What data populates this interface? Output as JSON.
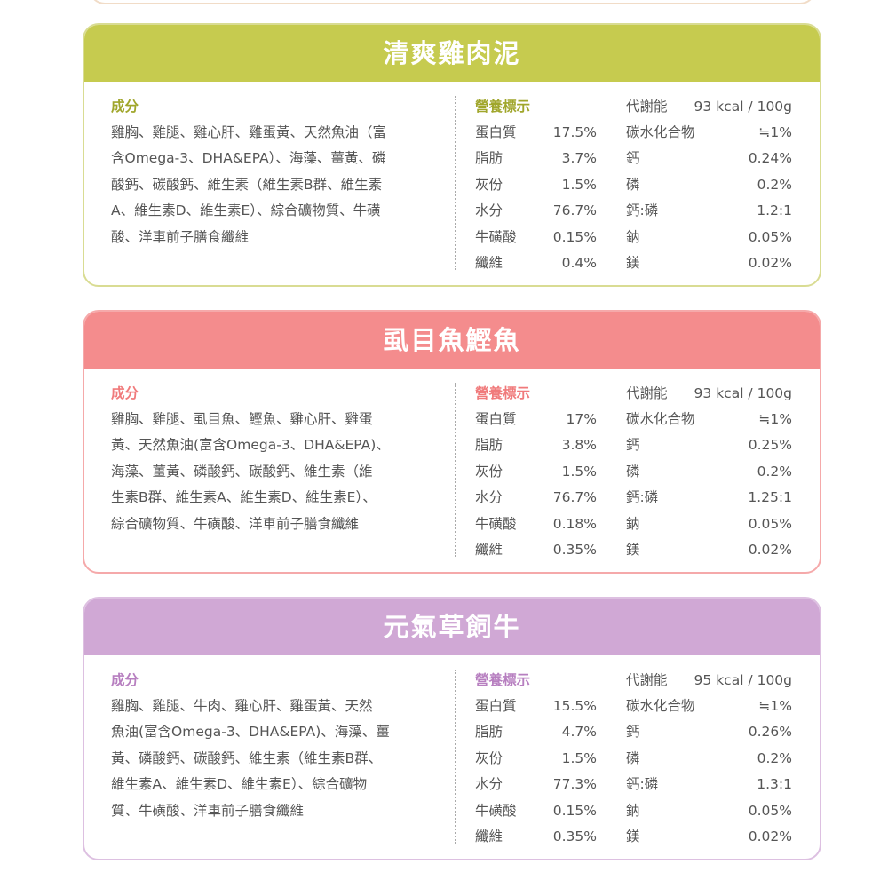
{
  "cards": [
    {
      "title": "清爽雞肉泥",
      "theme": "green",
      "ingredients_label": "成分",
      "ingredients_lines": [
        "雞胸、雞腿、雞心肝、雞蛋黃、天然魚油（富",
        "含Omega-3、DHA&EPA）、海藻、薑黃、磷",
        "酸鈣、碳酸鈣、維生素（維生素B群、維生素",
        "A、維生素D、維生素E）、綜合礦物質、牛磺",
        "酸、洋車前子膳食纖維"
      ],
      "nutrition_label": "營養標示",
      "energy_label": "代謝能",
      "energy_value": "93 kcal / 100g",
      "rows": [
        [
          "蛋白質",
          "17.5%",
          "碳水化合物",
          "≒1%"
        ],
        [
          "脂肪",
          "3.7%",
          "鈣",
          "0.24%"
        ],
        [
          "灰份",
          "1.5%",
          "磷",
          "0.2%"
        ],
        [
          "水分",
          "76.7%",
          "鈣:磷",
          "1.2:1"
        ],
        [
          "牛磺酸",
          "0.15%",
          "鈉",
          "0.05%"
        ],
        [
          "纖維",
          "0.4%",
          "鎂",
          "0.02%"
        ]
      ]
    },
    {
      "title": "虱目魚鰹魚",
      "theme": "pink",
      "ingredients_label": "成分",
      "ingredients_lines": [
        "雞胸、雞腿、虱目魚、鰹魚、雞心肝、雞蛋",
        "黃、天然魚油(富含Omega-3、DHA&EPA)、",
        "海藻、薑黃、磷酸鈣、碳酸鈣、維生素（維",
        "生素B群、維生素A、維生素D、維生素E）、",
        "綜合礦物質、牛磺酸、洋車前子膳食纖維"
      ],
      "nutrition_label": "營養標示",
      "energy_label": "代謝能",
      "energy_value": "93 kcal / 100g",
      "rows": [
        [
          "蛋白質",
          "17%",
          "碳水化合物",
          "≒1%"
        ],
        [
          "脂肪",
          "3.8%",
          "鈣",
          "0.25%"
        ],
        [
          "灰份",
          "1.5%",
          "磷",
          "0.2%"
        ],
        [
          "水分",
          "76.7%",
          "鈣:磷",
          "1.25:1"
        ],
        [
          "牛磺酸",
          "0.18%",
          "鈉",
          "0.05%"
        ],
        [
          "纖維",
          "0.35%",
          "鎂",
          "0.02%"
        ]
      ]
    },
    {
      "title": "元氣草飼牛",
      "theme": "purple",
      "ingredients_label": "成分",
      "ingredients_lines": [
        "雞胸、雞腿、牛肉、雞心肝、雞蛋黃、天然",
        "魚油(富含Omega-3、DHA&EPA)、海藻、薑",
        "黃、磷酸鈣、碳酸鈣、維生素（維生素B群、",
        "維生素A、維生素D、維生素E）、綜合礦物",
        "質、牛磺酸、洋車前子膳食纖維"
      ],
      "nutrition_label": "營養標示",
      "energy_label": "代謝能",
      "energy_value": "95 kcal / 100g",
      "rows": [
        [
          "蛋白質",
          "15.5%",
          "碳水化合物",
          "≒1%"
        ],
        [
          "脂肪",
          "4.7%",
          "鈣",
          "0.26%"
        ],
        [
          "灰份",
          "1.5%",
          "磷",
          "0.2%"
        ],
        [
          "水分",
          "77.3%",
          "鈣:磷",
          "1.3:1"
        ],
        [
          "牛磺酸",
          "0.15%",
          "鈉",
          "0.05%"
        ],
        [
          "纖維",
          "0.35%",
          "鎂",
          "0.02%"
        ]
      ]
    }
  ]
}
